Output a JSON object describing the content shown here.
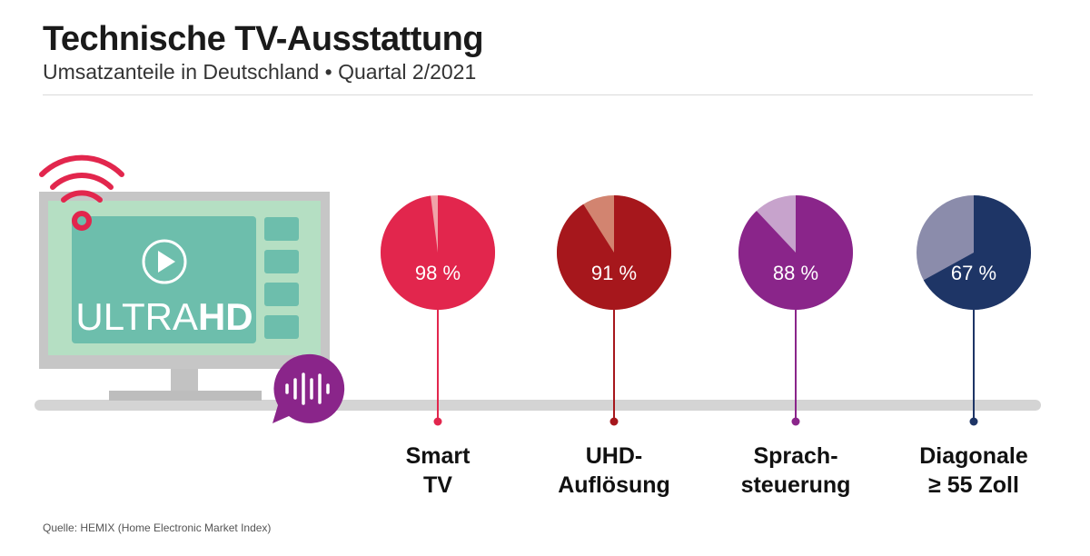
{
  "header": {
    "title": "Technische TV-Ausstattung",
    "subtitle": "Umsatzanteile in Deutschland • Quartal 2/2021"
  },
  "footer": {
    "source": "Quelle: HEMIX (Home Electronic Market Index)"
  },
  "illustration": {
    "screen_text_light": "ULTRA",
    "screen_text_bold": "HD",
    "icons": [
      "wifi-icon",
      "play-icon",
      "voice-icon"
    ]
  },
  "chart_data": {
    "type": "pie",
    "title": "Technische TV-Ausstattung",
    "subtitle": "Umsatzanteile in Deutschland • Quartal 2/2021",
    "unit": "%",
    "charts": [
      {
        "category_lines": [
          "Smart",
          "TV"
        ],
        "value": 98,
        "label": "98 %",
        "color": "#e2264d",
        "rest_color": "#f0a3a8"
      },
      {
        "category_lines": [
          "UHD-",
          "Auflösung"
        ],
        "value": 91,
        "label": "91 %",
        "color": "#a6171c",
        "rest_color": "#d28470"
      },
      {
        "category_lines": [
          "Sprach-",
          "steuerung"
        ],
        "value": 88,
        "label": "88 %",
        "color": "#8a258a",
        "rest_color": "#c7a3cc"
      },
      {
        "category_lines": [
          "Diagonale",
          "≥ 55 Zoll"
        ],
        "value": 67,
        "label": "67 %",
        "color": "#1e3566",
        "rest_color": "#8b8cab"
      }
    ]
  }
}
